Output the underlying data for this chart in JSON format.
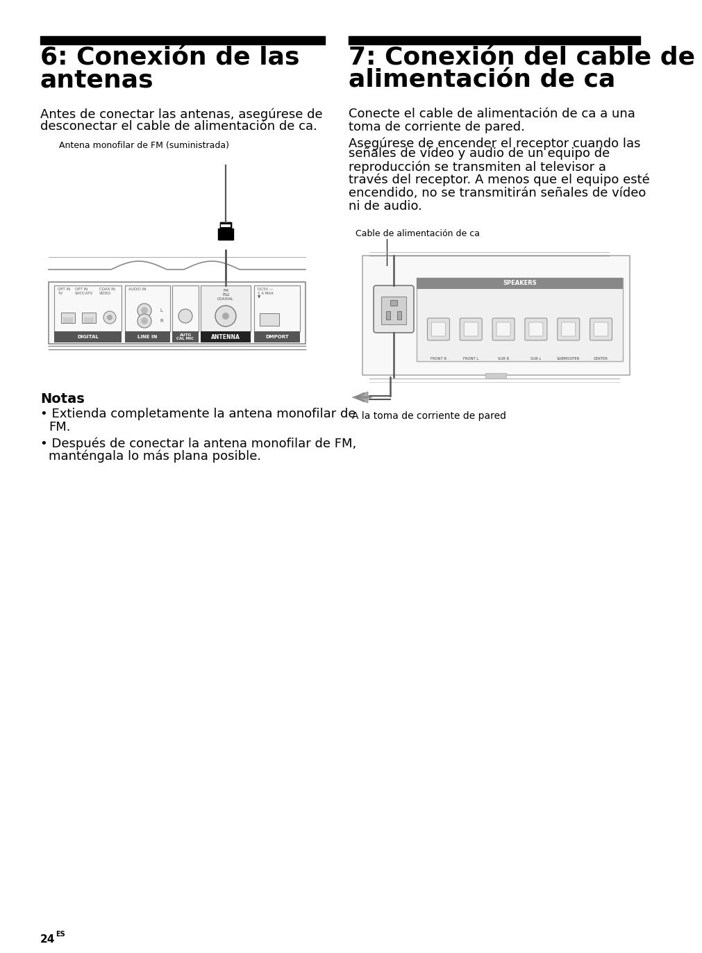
{
  "bg_color": "#ffffff",
  "page_number": "24",
  "page_number_super": "ES",
  "left_title_line1": "6: Conexión de las",
  "left_title_line2": "antenas",
  "right_title_line1": "7: Conexión del cable de",
  "right_title_line2": "alimentación de ca",
  "left_body1": "Antes de conectar las antenas, asegúrese de",
  "left_body2": "desconectar el cable de alimentación de ca.",
  "right_body1": "Conecte el cable de alimentación de ca a una",
  "right_body2": "toma de corriente de pared.",
  "right_body3": "Asegúrese de encender el receptor cuando las",
  "right_body4": "señales de vídeo y audio de un equipo de",
  "right_body5": "reproducción se transmiten al televisor a",
  "right_body6": "través del receptor. A menos que el equipo esté",
  "right_body7": "encendido, no se transmitirán señales de vídeo",
  "right_body8": "ni de audio.",
  "antenna_label": "Antena monofilar de FM (suministrada)",
  "cable_label": "Cable de alimentación de ca",
  "wall_label": "A la toma de corriente de pared",
  "notes_title": "Notas",
  "note1": "• Extienda completamente la antena monofilar de\n  FM.",
  "note2": "• Después de conectar la antena monofilar de FM,\n  manténgala lo más plana posible.",
  "bar_color": "#000000",
  "title_font_size": 26,
  "body_font_size": 13,
  "small_font_size": 9
}
